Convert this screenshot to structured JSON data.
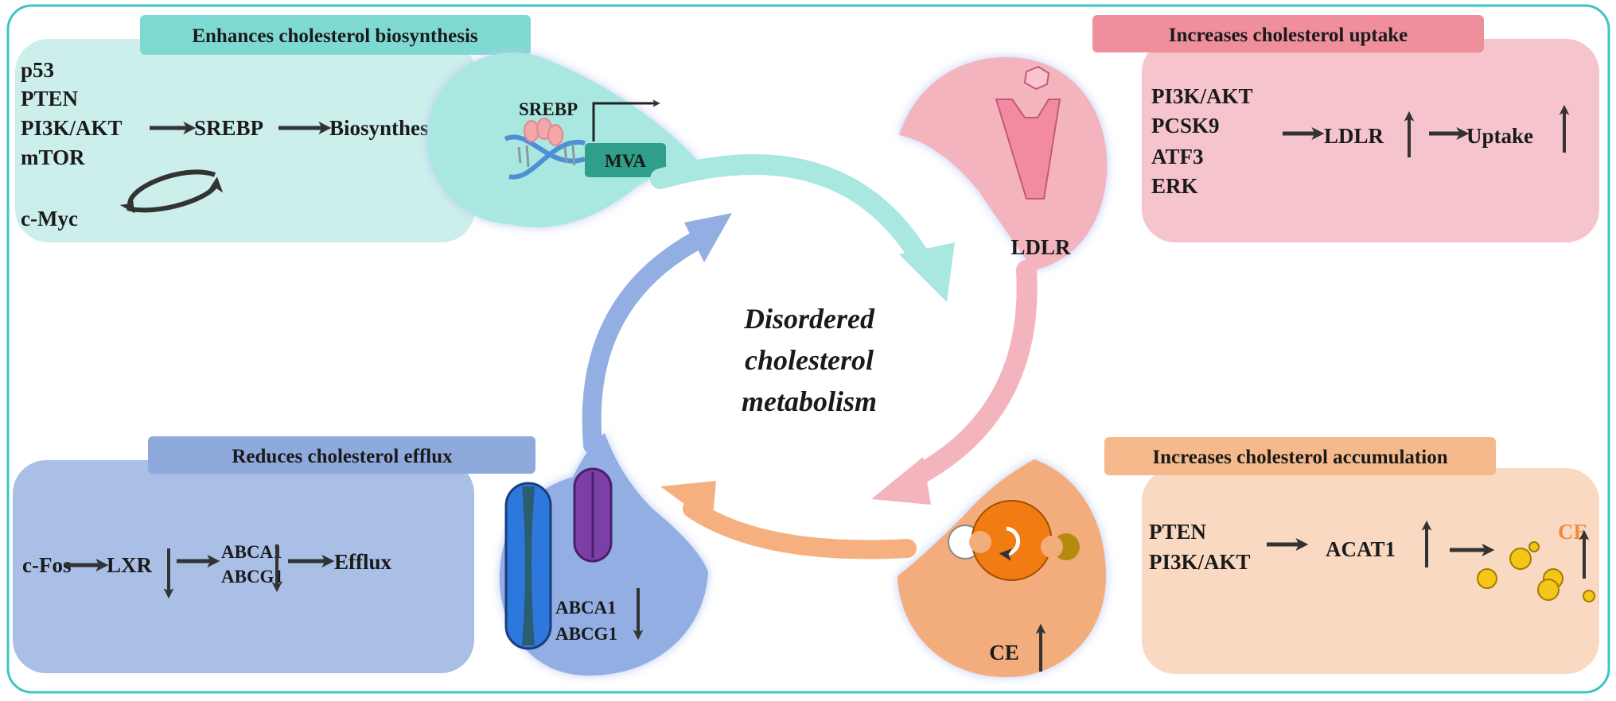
{
  "center_label": [
    "Disordered",
    "cholesterol",
    "metabolism"
  ],
  "colors": {
    "border": "#3ec4c4",
    "teal_title": "#7fd9d3",
    "teal_box": "#ccefec",
    "teal_blob": "#a9e7e1",
    "pink_title": "#ef8f9b",
    "pink_box": "#f6c4cc",
    "pink_blob": "#f3b4be",
    "blue_title": "#8ea9dc",
    "blue_box": "#a9bfe6",
    "blue_blob": "#93aee3",
    "orange_title": "#f5b98b",
    "orange_box": "#f9d9c2",
    "orange_blob": "#f3ad7b",
    "ce_label": "#f08a3c"
  },
  "biosynthesis": {
    "title": "Enhances cholesterol biosynthesis",
    "regulators": [
      "p53",
      "PTEN",
      "PI3K/AKT",
      "mTOR",
      "c-Myc"
    ],
    "target": "SREBP",
    "outcome": "Biosynthesis",
    "blob": {
      "factor": "SREBP",
      "gene": "MVA"
    }
  },
  "uptake": {
    "title": "Increases cholesterol uptake",
    "regulators": [
      "PI3K/AKT",
      "PCSK9",
      "ATF3",
      "ERK"
    ],
    "target": "LDLR",
    "outcome": "Uptake",
    "blob": {
      "receptor": "LDLR"
    }
  },
  "efflux": {
    "title": "Reduces cholesterol efflux",
    "regulator": "c-Fos",
    "target": "LXR",
    "transporters": [
      "ABCA1",
      "ABCG1"
    ],
    "outcome": "Efflux",
    "blob": {
      "transporters": [
        "ABCA1",
        "ABCG1"
      ]
    }
  },
  "accumulation": {
    "title": "Increases cholesterol accumulation",
    "regulators": [
      "PTEN",
      "PI3K/AKT"
    ],
    "target": "ACAT1",
    "outcome": "CE",
    "blob": {
      "product": "CE"
    }
  }
}
